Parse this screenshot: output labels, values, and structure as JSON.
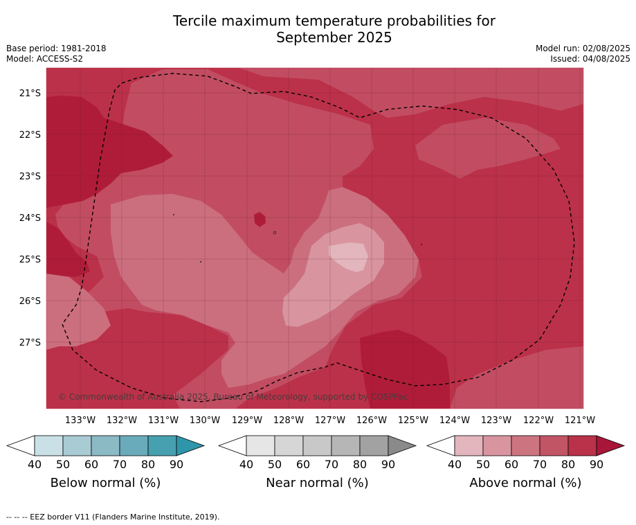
{
  "header": {
    "title_line1": "Tercile maximum temperature probabilities for",
    "title_line2": "September 2025",
    "base_period": "Base period: 1981-2018",
    "model": "Model: ACCESS-S2",
    "model_run": "Model run: 02/08/2025",
    "issued": "Issued: 04/08/2025"
  },
  "map": {
    "lat_labels": [
      "21°S",
      "22°S",
      "23°S",
      "24°S",
      "25°S",
      "26°S",
      "27°S"
    ],
    "lon_labels": [
      "133°W",
      "132°W",
      "131°W",
      "130°W",
      "129°W",
      "128°W",
      "127°W",
      "126°W",
      "125°W",
      "124°W",
      "123°W",
      "122°W",
      "121°W"
    ],
    "copyright": "© Commonwealth of Australia 2025, Bureau of Meteorology, supported by COSPPac",
    "colors": {
      "above_50": "#d8959f",
      "above_60": "#cb6f7f",
      "above_70": "#c24d62",
      "above_80": "#bb3149",
      "above_90": "#af1c39"
    }
  },
  "colorbars": [
    {
      "label": "Below normal (%)",
      "ticks": [
        "40",
        "50",
        "60",
        "70",
        "80",
        "90"
      ],
      "colors": [
        "#c9e1e6",
        "#a9cbd3",
        "#8bb9c4",
        "#6aabbb",
        "#47a0b0",
        "#2f95aa"
      ]
    },
    {
      "label": "Near normal (%)",
      "ticks": [
        "40",
        "50",
        "60",
        "70",
        "80",
        "90"
      ],
      "colors": [
        "#e6e6e6",
        "#d6d6d6",
        "#c8c8c8",
        "#b6b6b6",
        "#a2a2a2",
        "#8a8a8a"
      ]
    },
    {
      "label": "Above normal (%)",
      "ticks": [
        "40",
        "50",
        "60",
        "70",
        "80",
        "90"
      ],
      "colors": [
        "#e3b5bc",
        "#d8959f",
        "#cc7580",
        "#c25565",
        "#b93249",
        "#a8163a"
      ]
    }
  ],
  "footer": {
    "legend_text": "--  --  -- EEZ border V11 (Flanders Marine Institute, 2019)."
  }
}
